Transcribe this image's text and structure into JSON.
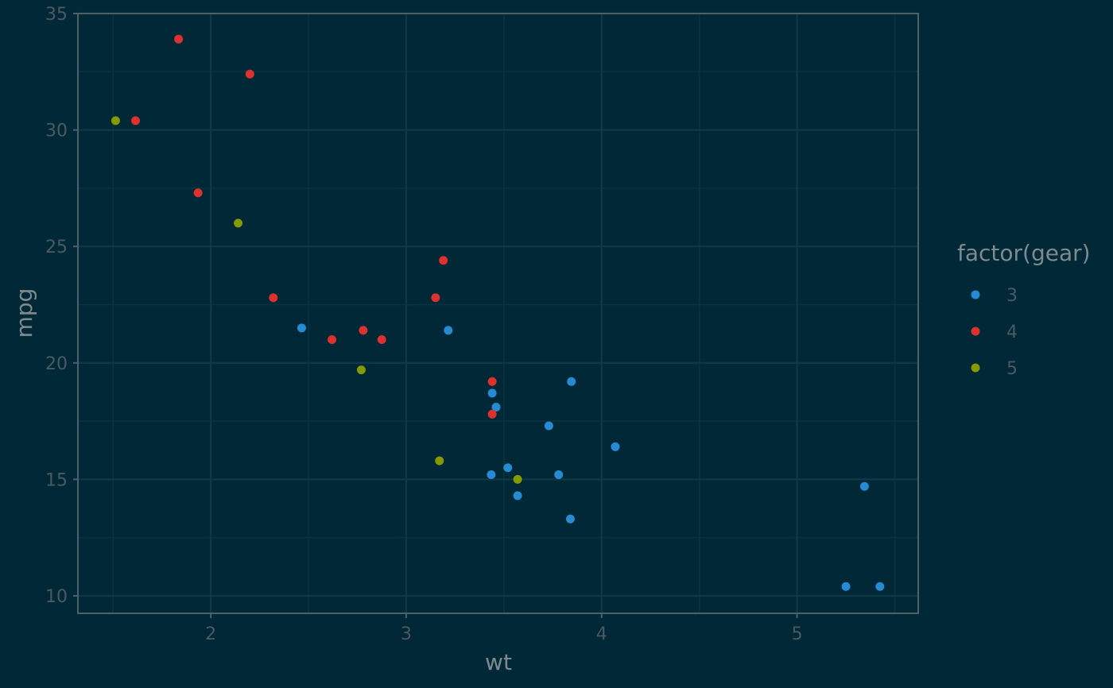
{
  "chart_data": {
    "type": "scatter",
    "title": "",
    "xlabel": "wt",
    "ylabel": "mpg",
    "xlim": [
      1.32,
      5.62
    ],
    "ylim": [
      9.25,
      35.0
    ],
    "x_ticks": [
      2,
      3,
      4,
      5
    ],
    "y_ticks": [
      10,
      15,
      20,
      25,
      30,
      35
    ],
    "grid": true,
    "legend": {
      "title": "factor(gear)",
      "position": "right"
    },
    "colors": {
      "3": "#268bd2",
      "4": "#dc322f",
      "5": "#859900"
    },
    "series": [
      {
        "name": "3",
        "points": [
          [
            2.465,
            21.5
          ],
          [
            3.215,
            21.4
          ],
          [
            3.44,
            18.7
          ],
          [
            3.46,
            18.1
          ],
          [
            3.57,
            14.3
          ],
          [
            4.07,
            16.4
          ],
          [
            3.73,
            17.3
          ],
          [
            3.78,
            15.2
          ],
          [
            5.25,
            10.4
          ],
          [
            5.424,
            10.4
          ],
          [
            5.345,
            14.7
          ],
          [
            3.52,
            15.5
          ],
          [
            3.435,
            15.2
          ],
          [
            3.84,
            13.3
          ],
          [
            3.845,
            19.2
          ]
        ]
      },
      {
        "name": "4",
        "points": [
          [
            2.62,
            21.0
          ],
          [
            2.875,
            21.0
          ],
          [
            2.32,
            22.8
          ],
          [
            3.19,
            24.4
          ],
          [
            3.15,
            22.8
          ],
          [
            3.44,
            19.2
          ],
          [
            3.44,
            17.8
          ],
          [
            2.2,
            32.4
          ],
          [
            1.615,
            30.4
          ],
          [
            1.835,
            33.9
          ],
          [
            1.935,
            27.3
          ],
          [
            2.78,
            21.4
          ]
        ]
      },
      {
        "name": "5",
        "points": [
          [
            2.14,
            26.0
          ],
          [
            1.513,
            30.4
          ],
          [
            3.17,
            15.8
          ],
          [
            2.77,
            19.7
          ],
          [
            3.57,
            15.0
          ]
        ]
      }
    ]
  }
}
